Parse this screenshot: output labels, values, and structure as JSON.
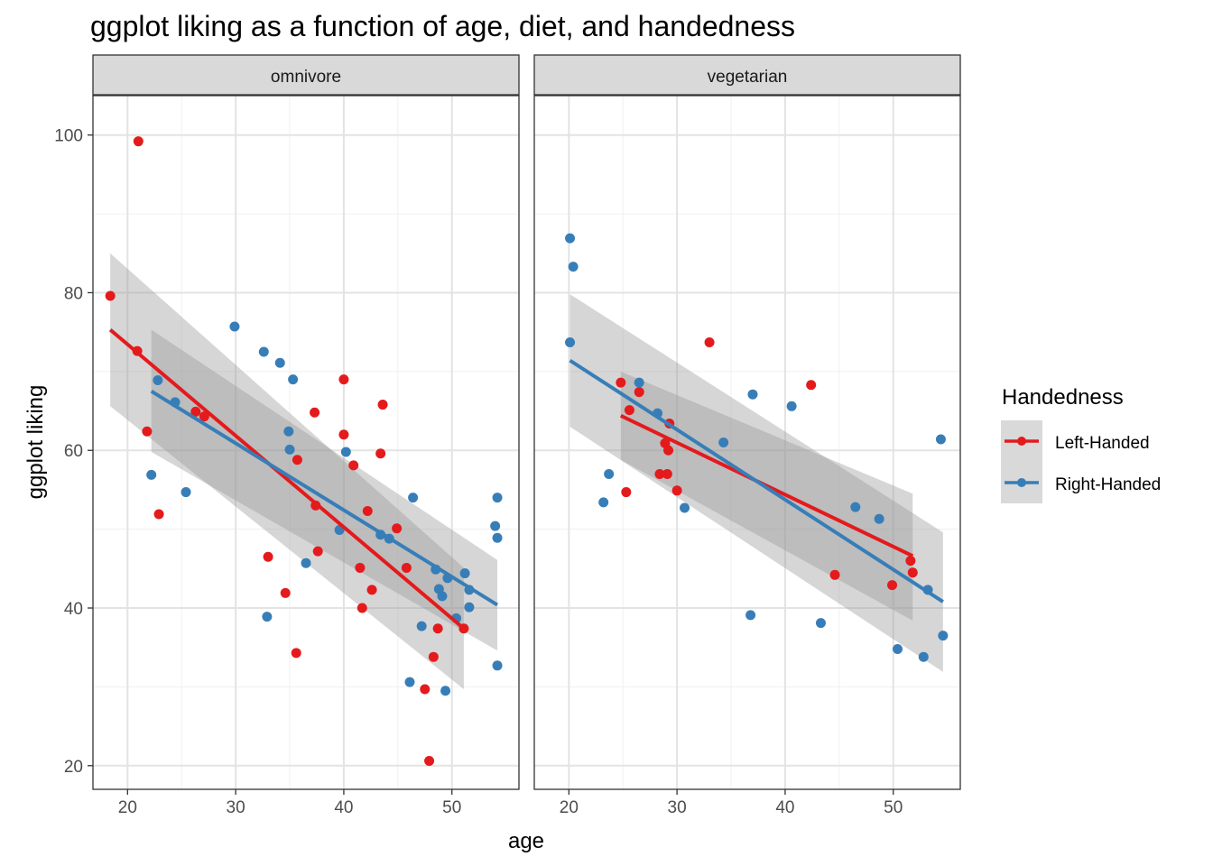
{
  "title": "ggplot liking as a function of age, diet, and handedness",
  "xlabel": "age",
  "ylabel": "ggplot liking",
  "legend": {
    "title": "Handedness",
    "placement": "right",
    "entries": [
      {
        "label": "Left-Handed",
        "color": "#E41A1C"
      },
      {
        "label": "Right-Handed",
        "color": "#377EB8"
      }
    ]
  },
  "chart_data": {
    "type": "scatter",
    "title": "ggplot liking as a function of age, diet, and handedness",
    "xlabel": "age",
    "ylabel": "ggplot liking",
    "xlim": [
      16.8,
      56.2
    ],
    "ylim": [
      17,
      105
    ],
    "xticks": [
      20,
      30,
      40,
      50
    ],
    "yticks": [
      20,
      40,
      60,
      80,
      100
    ],
    "grid": true,
    "smooth": "linear fit with confidence band",
    "facets": [
      {
        "label": "omnivore",
        "series": [
          {
            "name": "Left-Handed",
            "color": "#E41A1C",
            "points": [
              [
                18.4,
                79.6
              ],
              [
                21.0,
                99.2
              ],
              [
                20.9,
                72.6
              ],
              [
                21.8,
                62.4
              ],
              [
                22.9,
                51.9
              ],
              [
                26.3,
                64.9
              ],
              [
                27.1,
                64.3
              ],
              [
                33.0,
                46.5
              ],
              [
                34.6,
                41.9
              ],
              [
                35.6,
                34.3
              ],
              [
                35.7,
                58.8
              ],
              [
                37.3,
                64.8
              ],
              [
                37.4,
                53.0
              ],
              [
                37.6,
                47.2
              ],
              [
                40.0,
                69.0
              ],
              [
                40.0,
                62.0
              ],
              [
                40.9,
                58.1
              ],
              [
                41.5,
                45.1
              ],
              [
                41.7,
                40.0
              ],
              [
                42.2,
                52.3
              ],
              [
                42.6,
                42.3
              ],
              [
                43.4,
                59.6
              ],
              [
                43.6,
                65.8
              ],
              [
                44.9,
                50.1
              ],
              [
                45.8,
                45.1
              ],
              [
                47.5,
                29.7
              ],
              [
                47.9,
                20.6
              ],
              [
                48.3,
                33.8
              ],
              [
                48.7,
                37.4
              ],
              [
                51.1,
                37.4
              ]
            ],
            "fit": {
              "x": [
                18.4,
                51.1
              ],
              "y": [
                75.3,
                37.4
              ],
              "ci_lower": [
                65.6,
                29.7
              ],
              "ci_upper": [
                85.0,
                45.1
              ]
            }
          },
          {
            "name": "Right-Handed",
            "color": "#377EB8",
            "points": [
              [
                22.2,
                56.9
              ],
              [
                22.8,
                68.9
              ],
              [
                24.4,
                66.1
              ],
              [
                25.4,
                54.7
              ],
              [
                29.9,
                75.7
              ],
              [
                32.6,
                72.5
              ],
              [
                32.9,
                38.9
              ],
              [
                34.1,
                71.1
              ],
              [
                34.9,
                62.4
              ],
              [
                35.0,
                60.1
              ],
              [
                35.3,
                69.0
              ],
              [
                36.5,
                45.7
              ],
              [
                39.6,
                49.9
              ],
              [
                40.2,
                59.8
              ],
              [
                43.4,
                49.3
              ],
              [
                44.2,
                48.8
              ],
              [
                46.4,
                54.0
              ],
              [
                47.2,
                37.7
              ],
              [
                46.1,
                30.6
              ],
              [
                48.5,
                44.9
              ],
              [
                48.8,
                42.4
              ],
              [
                49.1,
                41.5
              ],
              [
                49.6,
                43.8
              ],
              [
                49.4,
                29.5
              ],
              [
                50.4,
                38.7
              ],
              [
                51.2,
                44.4
              ],
              [
                51.6,
                42.3
              ],
              [
                51.6,
                40.1
              ],
              [
                54.0,
                50.4
              ],
              [
                54.2,
                48.9
              ],
              [
                54.2,
                54.0
              ],
              [
                54.2,
                32.7
              ]
            ],
            "fit": {
              "x": [
                22.2,
                54.2
              ],
              "y": [
                67.5,
                40.4
              ],
              "ci_lower": [
                59.8,
                34.6
              ],
              "ci_upper": [
                75.3,
                46.1
              ]
            }
          }
        ]
      },
      {
        "label": "vegetarian",
        "series": [
          {
            "name": "Left-Handed",
            "color": "#E41A1C",
            "points": [
              [
                24.8,
                68.6
              ],
              [
                25.3,
                54.7
              ],
              [
                25.6,
                65.1
              ],
              [
                26.5,
                67.4
              ],
              [
                28.4,
                57.0
              ],
              [
                28.9,
                60.9
              ],
              [
                29.1,
                57.0
              ],
              [
                29.2,
                60.0
              ],
              [
                29.3,
                63.4
              ],
              [
                30.0,
                54.9
              ],
              [
                33.0,
                73.7
              ],
              [
                42.4,
                68.3
              ],
              [
                44.6,
                44.2
              ],
              [
                49.9,
                42.9
              ],
              [
                51.6,
                46.0
              ],
              [
                51.8,
                44.5
              ]
            ],
            "fit": {
              "x": [
                24.8,
                51.8
              ],
              "y": [
                64.4,
                46.6
              ],
              "ci_lower": [
                58.8,
                38.4
              ],
              "ci_upper": [
                70.0,
                54.5
              ]
            }
          },
          {
            "name": "Right-Handed",
            "color": "#377EB8",
            "points": [
              [
                20.1,
                86.9
              ],
              [
                20.4,
                83.3
              ],
              [
                20.1,
                73.7
              ],
              [
                23.2,
                53.4
              ],
              [
                23.7,
                57.0
              ],
              [
                26.5,
                68.6
              ],
              [
                28.2,
                64.7
              ],
              [
                30.7,
                52.7
              ],
              [
                34.3,
                61.0
              ],
              [
                36.8,
                39.1
              ],
              [
                37.0,
                67.1
              ],
              [
                40.6,
                65.6
              ],
              [
                43.3,
                38.1
              ],
              [
                46.5,
                52.8
              ],
              [
                48.7,
                51.3
              ],
              [
                50.4,
                34.8
              ],
              [
                52.8,
                33.8
              ],
              [
                53.2,
                42.3
              ],
              [
                54.4,
                61.4
              ],
              [
                54.6,
                36.5
              ]
            ],
            "fit": {
              "x": [
                20.1,
                54.6
              ],
              "y": [
                71.4,
                40.8
              ],
              "ci_lower": [
                63.0,
                31.9
              ],
              "ci_upper": [
                79.8,
                49.6
              ]
            }
          }
        ]
      }
    ]
  }
}
